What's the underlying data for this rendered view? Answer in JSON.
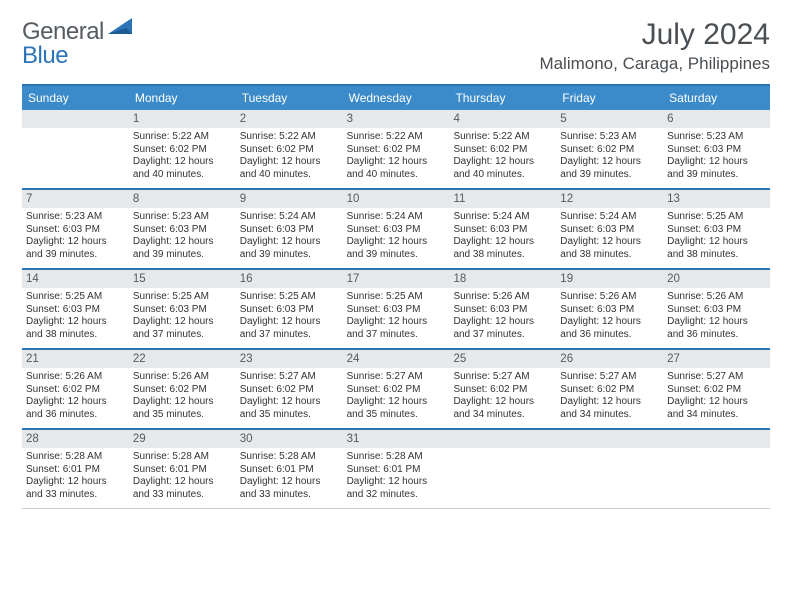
{
  "logo": {
    "textGray": "General",
    "textBlue": "Blue"
  },
  "title": "July 2024",
  "location": "Malimono, Caraga, Philippines",
  "colors": {
    "headerBlue": "#3b8bca",
    "ruleBlue": "#2b74b8",
    "dayBarGray": "#e7e8e9",
    "textDark": "#333333",
    "titleGray": "#4a4f54"
  },
  "dayNames": [
    "Sunday",
    "Monday",
    "Tuesday",
    "Wednesday",
    "Thursday",
    "Friday",
    "Saturday"
  ],
  "weeks": [
    [
      {
        "n": "",
        "sr": "",
        "ss": "",
        "dl": ""
      },
      {
        "n": "1",
        "sr": "5:22 AM",
        "ss": "6:02 PM",
        "dl": "12 hours and 40 minutes."
      },
      {
        "n": "2",
        "sr": "5:22 AM",
        "ss": "6:02 PM",
        "dl": "12 hours and 40 minutes."
      },
      {
        "n": "3",
        "sr": "5:22 AM",
        "ss": "6:02 PM",
        "dl": "12 hours and 40 minutes."
      },
      {
        "n": "4",
        "sr": "5:22 AM",
        "ss": "6:02 PM",
        "dl": "12 hours and 40 minutes."
      },
      {
        "n": "5",
        "sr": "5:23 AM",
        "ss": "6:02 PM",
        "dl": "12 hours and 39 minutes."
      },
      {
        "n": "6",
        "sr": "5:23 AM",
        "ss": "6:03 PM",
        "dl": "12 hours and 39 minutes."
      }
    ],
    [
      {
        "n": "7",
        "sr": "5:23 AM",
        "ss": "6:03 PM",
        "dl": "12 hours and 39 minutes."
      },
      {
        "n": "8",
        "sr": "5:23 AM",
        "ss": "6:03 PM",
        "dl": "12 hours and 39 minutes."
      },
      {
        "n": "9",
        "sr": "5:24 AM",
        "ss": "6:03 PM",
        "dl": "12 hours and 39 minutes."
      },
      {
        "n": "10",
        "sr": "5:24 AM",
        "ss": "6:03 PM",
        "dl": "12 hours and 39 minutes."
      },
      {
        "n": "11",
        "sr": "5:24 AM",
        "ss": "6:03 PM",
        "dl": "12 hours and 38 minutes."
      },
      {
        "n": "12",
        "sr": "5:24 AM",
        "ss": "6:03 PM",
        "dl": "12 hours and 38 minutes."
      },
      {
        "n": "13",
        "sr": "5:25 AM",
        "ss": "6:03 PM",
        "dl": "12 hours and 38 minutes."
      }
    ],
    [
      {
        "n": "14",
        "sr": "5:25 AM",
        "ss": "6:03 PM",
        "dl": "12 hours and 38 minutes."
      },
      {
        "n": "15",
        "sr": "5:25 AM",
        "ss": "6:03 PM",
        "dl": "12 hours and 37 minutes."
      },
      {
        "n": "16",
        "sr": "5:25 AM",
        "ss": "6:03 PM",
        "dl": "12 hours and 37 minutes."
      },
      {
        "n": "17",
        "sr": "5:25 AM",
        "ss": "6:03 PM",
        "dl": "12 hours and 37 minutes."
      },
      {
        "n": "18",
        "sr": "5:26 AM",
        "ss": "6:03 PM",
        "dl": "12 hours and 37 minutes."
      },
      {
        "n": "19",
        "sr": "5:26 AM",
        "ss": "6:03 PM",
        "dl": "12 hours and 36 minutes."
      },
      {
        "n": "20",
        "sr": "5:26 AM",
        "ss": "6:03 PM",
        "dl": "12 hours and 36 minutes."
      }
    ],
    [
      {
        "n": "21",
        "sr": "5:26 AM",
        "ss": "6:02 PM",
        "dl": "12 hours and 36 minutes."
      },
      {
        "n": "22",
        "sr": "5:26 AM",
        "ss": "6:02 PM",
        "dl": "12 hours and 35 minutes."
      },
      {
        "n": "23",
        "sr": "5:27 AM",
        "ss": "6:02 PM",
        "dl": "12 hours and 35 minutes."
      },
      {
        "n": "24",
        "sr": "5:27 AM",
        "ss": "6:02 PM",
        "dl": "12 hours and 35 minutes."
      },
      {
        "n": "25",
        "sr": "5:27 AM",
        "ss": "6:02 PM",
        "dl": "12 hours and 34 minutes."
      },
      {
        "n": "26",
        "sr": "5:27 AM",
        "ss": "6:02 PM",
        "dl": "12 hours and 34 minutes."
      },
      {
        "n": "27",
        "sr": "5:27 AM",
        "ss": "6:02 PM",
        "dl": "12 hours and 34 minutes."
      }
    ],
    [
      {
        "n": "28",
        "sr": "5:28 AM",
        "ss": "6:01 PM",
        "dl": "12 hours and 33 minutes."
      },
      {
        "n": "29",
        "sr": "5:28 AM",
        "ss": "6:01 PM",
        "dl": "12 hours and 33 minutes."
      },
      {
        "n": "30",
        "sr": "5:28 AM",
        "ss": "6:01 PM",
        "dl": "12 hours and 33 minutes."
      },
      {
        "n": "31",
        "sr": "5:28 AM",
        "ss": "6:01 PM",
        "dl": "12 hours and 32 minutes."
      },
      {
        "n": "",
        "sr": "",
        "ss": "",
        "dl": ""
      },
      {
        "n": "",
        "sr": "",
        "ss": "",
        "dl": ""
      },
      {
        "n": "",
        "sr": "",
        "ss": "",
        "dl": ""
      }
    ]
  ],
  "labels": {
    "sunrise": "Sunrise:",
    "sunset": "Sunset:",
    "daylight": "Daylight:"
  }
}
